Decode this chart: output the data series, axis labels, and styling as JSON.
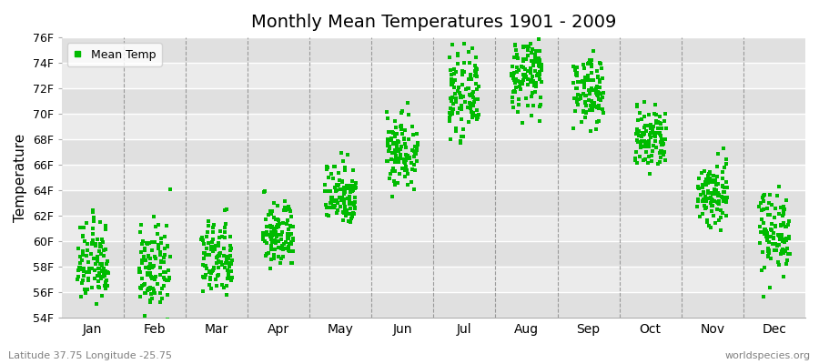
{
  "title": "Monthly Mean Temperatures 1901 - 2009",
  "ylabel": "Temperature",
  "xlabel_labels": [
    "Jan",
    "Feb",
    "Mar",
    "Apr",
    "May",
    "Jun",
    "Jul",
    "Aug",
    "Sep",
    "Oct",
    "Nov",
    "Dec"
  ],
  "subtitle": "Latitude 37.75 Longitude -25.75",
  "watermark": "worldspecies.org",
  "legend_label": "Mean Temp",
  "dot_color": "#00bb00",
  "bg_color": "#ebebeb",
  "bg_stripe_color": "#e0e0e0",
  "ylim": [
    54,
    76
  ],
  "yticks": [
    54,
    56,
    58,
    60,
    62,
    64,
    66,
    68,
    70,
    72,
    74,
    76
  ],
  "ytick_labels": [
    "54F",
    "56F",
    "58F",
    "60F",
    "62F",
    "64F",
    "66F",
    "68F",
    "70F",
    "72F",
    "74F",
    "76F"
  ],
  "n_years": 109,
  "monthly_means": [
    58.3,
    57.8,
    58.6,
    60.5,
    63.8,
    67.2,
    71.5,
    73.0,
    71.8,
    68.0,
    63.8,
    60.8
  ],
  "monthly_stds": [
    1.6,
    1.6,
    1.5,
    1.3,
    1.3,
    1.5,
    1.5,
    1.4,
    1.3,
    1.3,
    1.4,
    1.6
  ],
  "seed": 12345
}
